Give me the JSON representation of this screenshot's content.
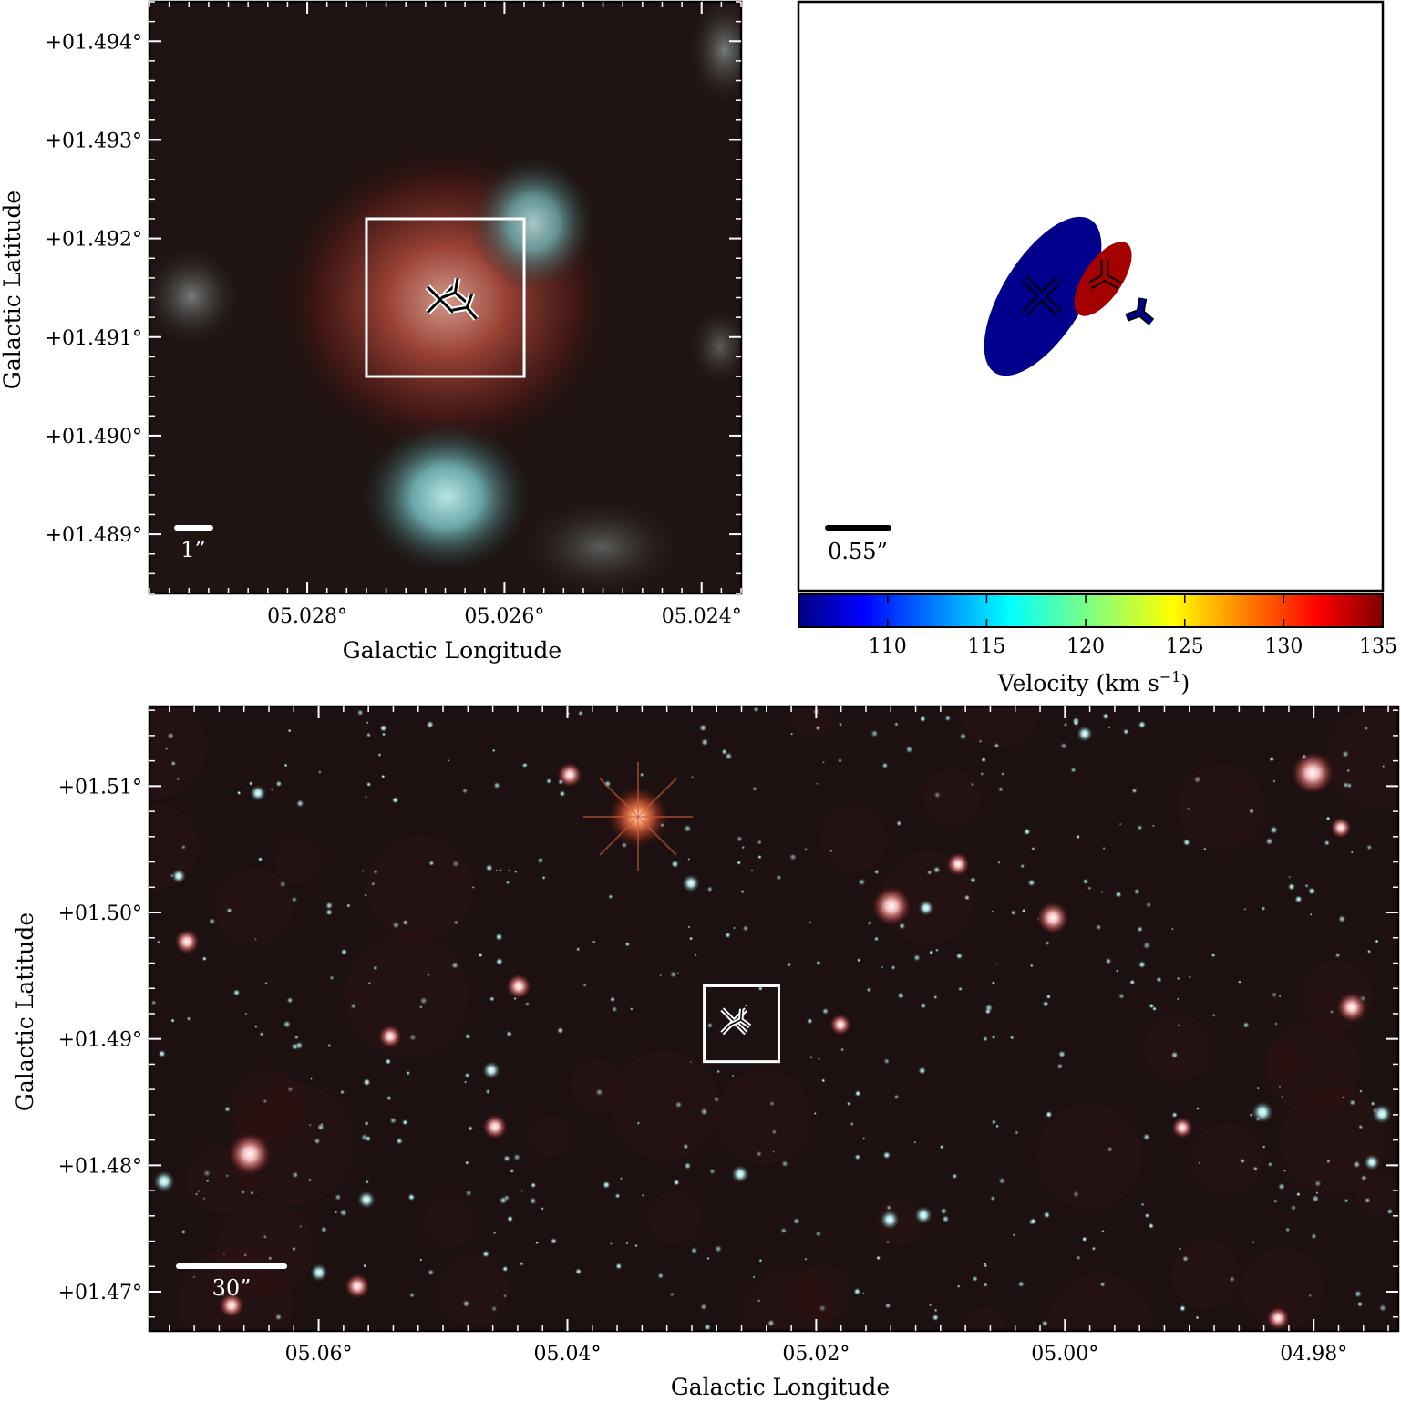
{
  "chart_data": [
    {
      "type": "scatter",
      "panel": "top-left image cutout (infrared RGB)",
      "xlabel": "Galactic Longitude",
      "ylabel": "Galactic Latitude",
      "xlim": [
        5.0296,
        5.0236
      ],
      "ylim": [
        1.4884,
        1.4944
      ],
      "x_ticks": [
        5.028,
        5.026,
        5.024
      ],
      "x_tick_labels": [
        "05.028°",
        "05.026°",
        "05.024°"
      ],
      "y_ticks": [
        1.489,
        1.49,
        1.491,
        1.492,
        1.493,
        1.494
      ],
      "y_tick_labels": [
        "+01.489°",
        "+01.490°",
        "+01.491°",
        "+01.492°",
        "+01.493°",
        "+01.494°"
      ],
      "scalebar_label": "1”",
      "box": {
        "x": [
          5.0274,
          5.0258
        ],
        "y": [
          1.4906,
          1.4922
        ]
      },
      "markers": [
        {
          "shape": "x",
          "x": 5.02665,
          "y": 1.49138
        },
        {
          "shape": "y",
          "x": 5.0265,
          "y": 1.49145
        },
        {
          "shape": "y",
          "x": 5.02638,
          "y": 1.4913
        }
      ]
    },
    {
      "type": "scatter",
      "panel": "top-right maser spot map",
      "colorbar": {
        "label": "Velocity (km s−1)",
        "range": [
          105.5,
          135
        ],
        "ticks": [
          110,
          115,
          120,
          125,
          130,
          135
        ],
        "tick_labels": [
          "110",
          "115",
          "120",
          "125",
          "130",
          "135"
        ],
        "colormap": "jet"
      },
      "scalebar_label": "0.55”",
      "ellipses": [
        {
          "velocity": 107,
          "color": "#00008c"
        },
        {
          "velocity": 133,
          "color": "#a50000"
        }
      ],
      "markers": [
        {
          "shape": "x",
          "velocity": 107,
          "color": "#00008c"
        },
        {
          "shape": "y",
          "velocity": 133,
          "color": "#a50000"
        },
        {
          "shape": "y",
          "velocity": 107,
          "color": "#00008c"
        }
      ]
    },
    {
      "type": "scatter",
      "panel": "bottom wide-field image (infrared RGB)",
      "xlabel": "Galactic Longitude",
      "ylabel": "Galactic Latitude",
      "xlim": [
        5.0736,
        4.9732
      ],
      "ylim": [
        1.4669,
        1.5163
      ],
      "x_ticks": [
        5.06,
        5.04,
        5.02,
        5.0,
        4.98
      ],
      "x_tick_labels": [
        "05.06°",
        "05.04°",
        "05.02°",
        "05.00°",
        "04.98°"
      ],
      "y_ticks": [
        1.47,
        1.48,
        1.49,
        1.5,
        1.51
      ],
      "y_tick_labels": [
        "+01.47°",
        "+01.48°",
        "+01.49°",
        "+01.50°",
        "+01.51°"
      ],
      "scalebar_label": "30”",
      "box": {
        "x": [
          5.029,
          5.023
        ],
        "y": [
          1.4882,
          1.4942
        ]
      },
      "markers": [
        {
          "shape": "x",
          "x": 5.0266,
          "y": 1.4914
        },
        {
          "shape": "y",
          "x": 5.0265,
          "y": 1.4915
        }
      ]
    }
  ]
}
